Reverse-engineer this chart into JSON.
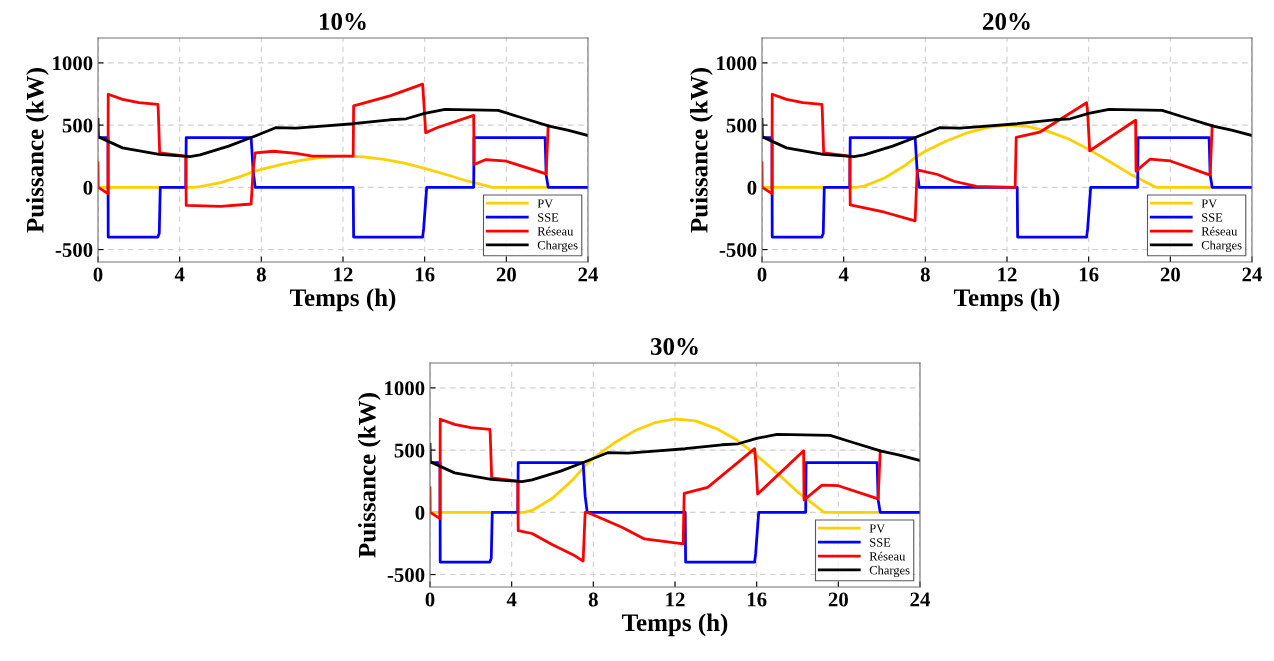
{
  "chart_data": [
    {
      "type": "line",
      "title": "10%",
      "xlabel": "Temps (h)",
      "ylabel": "Puissance (kW)",
      "xlim": [
        0,
        24
      ],
      "ylim": [
        -600,
        1200
      ],
      "xticks": [
        0,
        4,
        8,
        12,
        16,
        20,
        24
      ],
      "yticks": [
        -500,
        0,
        500,
        1000
      ],
      "grid": true,
      "legend": "bottom right",
      "series": [
        {
          "name": "PV",
          "color": "#ffd000",
          "x": [
            0,
            4.6,
            5,
            6,
            7,
            7.6,
            8,
            9,
            10,
            11,
            12,
            13,
            14,
            15,
            16,
            17,
            18,
            19,
            19.3,
            24
          ],
          "values": [
            0,
            0,
            5,
            38,
            88,
            125,
            145,
            185,
            218,
            240,
            250,
            245,
            225,
            195,
            153,
            105,
            55,
            13,
            0,
            0
          ]
        },
        {
          "name": "SSE",
          "color": "#0000ff",
          "x": [
            0,
            0.49,
            0.5,
            2.93,
            3.0,
            3.05,
            4.3,
            4.32,
            7.5,
            7.6,
            7.7,
            12.5,
            12.52,
            15.9,
            15.95,
            16.1,
            18.4,
            18.42,
            21.9,
            21.95,
            22.05,
            24
          ],
          "values": [
            400,
            400,
            -400,
            -400,
            -370,
            0,
            0,
            400,
            400,
            130,
            0,
            0,
            -400,
            -400,
            -330,
            0,
            0,
            400,
            400,
            100,
            0,
            0
          ]
        },
        {
          "name": "Réseau",
          "color": "#ff0000",
          "x": [
            0,
            0.01,
            0.49,
            0.5,
            1.2,
            2,
            2.93,
            2.95,
            3.02,
            4.3,
            4.32,
            6,
            7.5,
            7.6,
            7.7,
            8.6,
            9.7,
            10.5,
            12.5,
            12.52,
            14.3,
            15.9,
            15.95,
            16.05,
            16.6,
            18.4,
            18.42,
            19,
            20,
            21.95,
            22.05
          ],
          "values": [
            196,
            0,
            -51,
            748,
            707,
            680,
            667,
            627,
            277,
            250,
            -145,
            -153,
            -134,
            143,
            277,
            290,
            272,
            250,
            250,
            654,
            735,
            829,
            707,
            438,
            479,
            578,
            183,
            223,
            210,
            108,
            495
          ]
        },
        {
          "name": "Charges",
          "color": "#000000",
          "x": [
            0,
            0.02,
            1.2,
            3,
            4.5,
            5,
            6.4,
            7.6,
            8.7,
            9.7,
            11,
            12.5,
            14.3,
            15.1,
            16,
            17,
            19.6,
            20.6,
            22.1,
            23,
            24
          ],
          "values": [
            545,
            406,
            317,
            264,
            247,
            261,
            331,
            406,
            479,
            476,
            492,
            511,
            543,
            551,
            594,
            627,
            619,
            567,
            492,
            460,
            417
          ]
        }
      ]
    },
    {
      "type": "line",
      "title": "20%",
      "xlabel": "Temps (h)",
      "ylabel": "Puissance (kW)",
      "xlim": [
        0,
        24
      ],
      "ylim": [
        -600,
        1200
      ],
      "xticks": [
        0,
        4,
        8,
        12,
        16,
        20,
        24
      ],
      "yticks": [
        -500,
        0,
        500,
        1000
      ],
      "grid": true,
      "legend": "bottom right",
      "series": [
        {
          "name": "PV",
          "color": "#ffd000",
          "x": [
            0,
            4.6,
            5,
            6,
            7,
            7.6,
            8,
            9,
            10,
            11,
            12,
            13,
            14,
            15,
            16,
            17,
            18,
            19,
            19.3,
            24
          ],
          "values": [
            0,
            0,
            10,
            75,
            175,
            250,
            290,
            370,
            435,
            480,
            500,
            490,
            450,
            390,
            305,
            210,
            110,
            25,
            0,
            0
          ]
        },
        {
          "name": "SSE",
          "color": "#0000ff",
          "x": [
            0,
            0.49,
            0.5,
            2.93,
            3.0,
            3.05,
            4.3,
            4.32,
            7.5,
            7.6,
            7.7,
            12.5,
            12.52,
            15.9,
            15.95,
            16.1,
            18.4,
            18.42,
            21.9,
            21.95,
            22.05,
            24
          ],
          "values": [
            400,
            400,
            -400,
            -400,
            -370,
            0,
            0,
            400,
            400,
            130,
            0,
            0,
            -400,
            -400,
            -330,
            0,
            0,
            400,
            400,
            100,
            0,
            0
          ]
        },
        {
          "name": "Réseau",
          "color": "#ff0000",
          "x": [
            0,
            0.01,
            0.49,
            0.5,
            1.2,
            2,
            2.93,
            2.95,
            3.02,
            4.3,
            4.32,
            6,
            7.5,
            7.6,
            7.7,
            8.6,
            9.4,
            10.5,
            12.4,
            12.45,
            13.6,
            15.9,
            15.95,
            16.05,
            18.3,
            18.32,
            19,
            20,
            21.95,
            22.05
          ],
          "values": [
            196,
            0,
            -51,
            748,
            707,
            680,
            667,
            627,
            277,
            250,
            -141,
            -200,
            -269,
            130,
            136,
            103,
            49,
            8,
            0,
            402,
            443,
            680,
            600,
            294,
            539,
            130,
            226,
            212,
            98,
            498
          ]
        },
        {
          "name": "Charges",
          "color": "#000000",
          "x": [
            0,
            0.02,
            1.2,
            3,
            4.5,
            5,
            6.4,
            7.6,
            8.7,
            9.7,
            11,
            12.5,
            14.3,
            15.1,
            16,
            17,
            19.6,
            20.6,
            22.1,
            23,
            24
          ],
          "values": [
            545,
            406,
            317,
            264,
            247,
            261,
            331,
            406,
            479,
            476,
            492,
            511,
            543,
            551,
            594,
            627,
            619,
            567,
            492,
            460,
            417
          ]
        }
      ]
    },
    {
      "type": "line",
      "title": "30%",
      "xlabel": "Temps (h)",
      "ylabel": "Puissance (kW)",
      "xlim": [
        0,
        24
      ],
      "ylim": [
        -600,
        1200
      ],
      "xticks": [
        0,
        4,
        8,
        12,
        16,
        20,
        24
      ],
      "yticks": [
        -500,
        0,
        500,
        1000
      ],
      "grid": true,
      "legend": "bottom right",
      "series": [
        {
          "name": "PV",
          "color": "#ffd000",
          "x": [
            0,
            4.6,
            5,
            6,
            7,
            7.6,
            8,
            9,
            10,
            11,
            12,
            13,
            14,
            15,
            16,
            17,
            18,
            19,
            19.3,
            24
          ],
          "values": [
            0,
            0,
            15,
            113,
            263,
            375,
            435,
            555,
            653,
            720,
            750,
            735,
            675,
            585,
            458,
            315,
            165,
            38,
            0,
            0
          ]
        },
        {
          "name": "SSE",
          "color": "#0000ff",
          "x": [
            0,
            0.49,
            0.5,
            2.93,
            3.0,
            3.05,
            4.3,
            4.32,
            7.5,
            7.6,
            7.7,
            12.5,
            12.52,
            15.9,
            15.95,
            16.1,
            18.4,
            18.42,
            21.9,
            21.95,
            22.05,
            24
          ],
          "values": [
            400,
            400,
            -400,
            -400,
            -370,
            0,
            0,
            400,
            400,
            130,
            0,
            0,
            -400,
            -400,
            -330,
            0,
            0,
            400,
            400,
            100,
            0,
            0
          ]
        },
        {
          "name": "Réseau",
          "color": "#ff0000",
          "x": [
            0,
            0.01,
            0.49,
            0.5,
            1.2,
            2,
            2.93,
            2.95,
            3.02,
            4.3,
            4.32,
            5,
            6,
            7,
            7.5,
            7.6,
            7.7,
            9.4,
            10.5,
            12.4,
            12.45,
            13.6,
            15.9,
            15.95,
            16.05,
            18.3,
            18.32,
            19.2,
            20,
            21.95,
            22.05
          ],
          "values": [
            196,
            0,
            -51,
            748,
            707,
            680,
            667,
            627,
            277,
            250,
            -147,
            -170,
            -260,
            -340,
            -392,
            0,
            0,
            -120,
            -214,
            -254,
            152,
            200,
            512,
            420,
            147,
            494,
            99,
            219,
            214,
            108,
            490
          ]
        },
        {
          "name": "Charges",
          "color": "#000000",
          "x": [
            0,
            0.02,
            1.2,
            3,
            4.5,
            5,
            6.4,
            7.6,
            8.7,
            9.7,
            11,
            12.5,
            14.3,
            15.1,
            16,
            17,
            19.6,
            20.6,
            22.1,
            23,
            24
          ],
          "values": [
            545,
            406,
            317,
            264,
            247,
            261,
            331,
            406,
            479,
            476,
            492,
            511,
            543,
            551,
            594,
            627,
            619,
            567,
            492,
            460,
            417
          ]
        }
      ]
    }
  ]
}
